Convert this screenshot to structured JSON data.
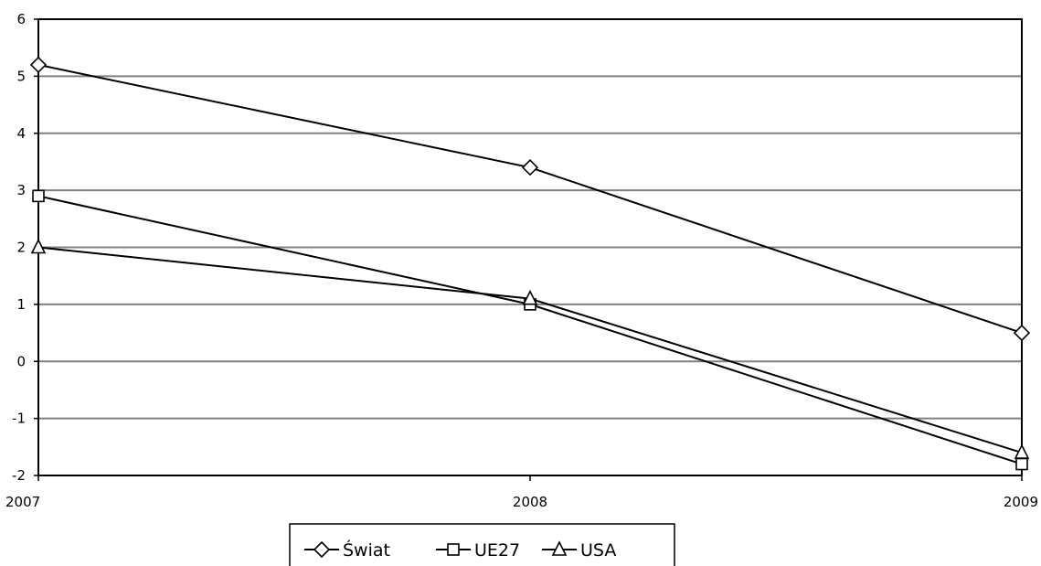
{
  "chart_data": {
    "type": "line",
    "x": [
      "2007",
      "2008",
      "2009"
    ],
    "series": [
      {
        "name": "Świat",
        "values": [
          5.2,
          3.4,
          0.5
        ],
        "marker": "diamond"
      },
      {
        "name": "UE27",
        "values": [
          2.9,
          1.0,
          -1.8
        ],
        "marker": "square"
      },
      {
        "name": "USA",
        "values": [
          2.0,
          1.1,
          -1.6
        ],
        "marker": "triangle"
      }
    ],
    "ylim": [
      -2,
      6
    ],
    "yticks": [
      "6",
      "5",
      "4",
      "3",
      "2",
      "1",
      "0",
      "-1",
      "-2"
    ],
    "grid": true,
    "legend": "bottom",
    "colors": {
      "line": "#000000",
      "grid": "#808080",
      "marker_fill": "#ffffff"
    }
  }
}
